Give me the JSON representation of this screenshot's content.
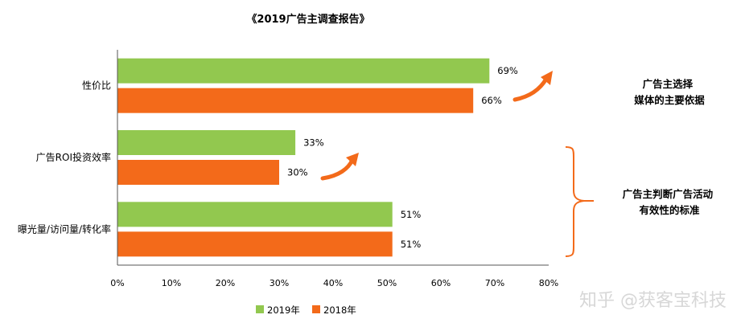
{
  "chart_data": {
    "type": "bar",
    "orientation": "horizontal",
    "title": "《2019广告主调查报告》",
    "categories": [
      "性价比",
      "广告ROI投资效率",
      "曝光量/访问量/转化率"
    ],
    "series": [
      {
        "name": "2019年",
        "values": [
          69,
          33,
          51
        ],
        "labels": [
          "69%",
          "33%",
          "51%"
        ],
        "color": "#92c84f"
      },
      {
        "name": "2018年",
        "values": [
          66,
          30,
          51
        ],
        "labels": [
          "66%",
          "30%",
          "51%"
        ],
        "color": "#f36a1a"
      }
    ],
    "xlim": [
      0,
      80
    ],
    "xticks": [
      0,
      10,
      20,
      30,
      40,
      50,
      60,
      70,
      80
    ],
    "xtick_labels": [
      "0%",
      "10%",
      "20%",
      "30%",
      "40%",
      "50%",
      "60%",
      "70%",
      "80%"
    ],
    "grid": false,
    "legend_position": "bottom-center",
    "annotations": [
      {
        "lines": [
          "广告主选择",
          "媒体的主要依据"
        ]
      },
      {
        "lines": [
          "广告主判断广告活动",
          "有效性的标准"
        ]
      }
    ]
  },
  "watermark": "知乎 @获客宝科技"
}
